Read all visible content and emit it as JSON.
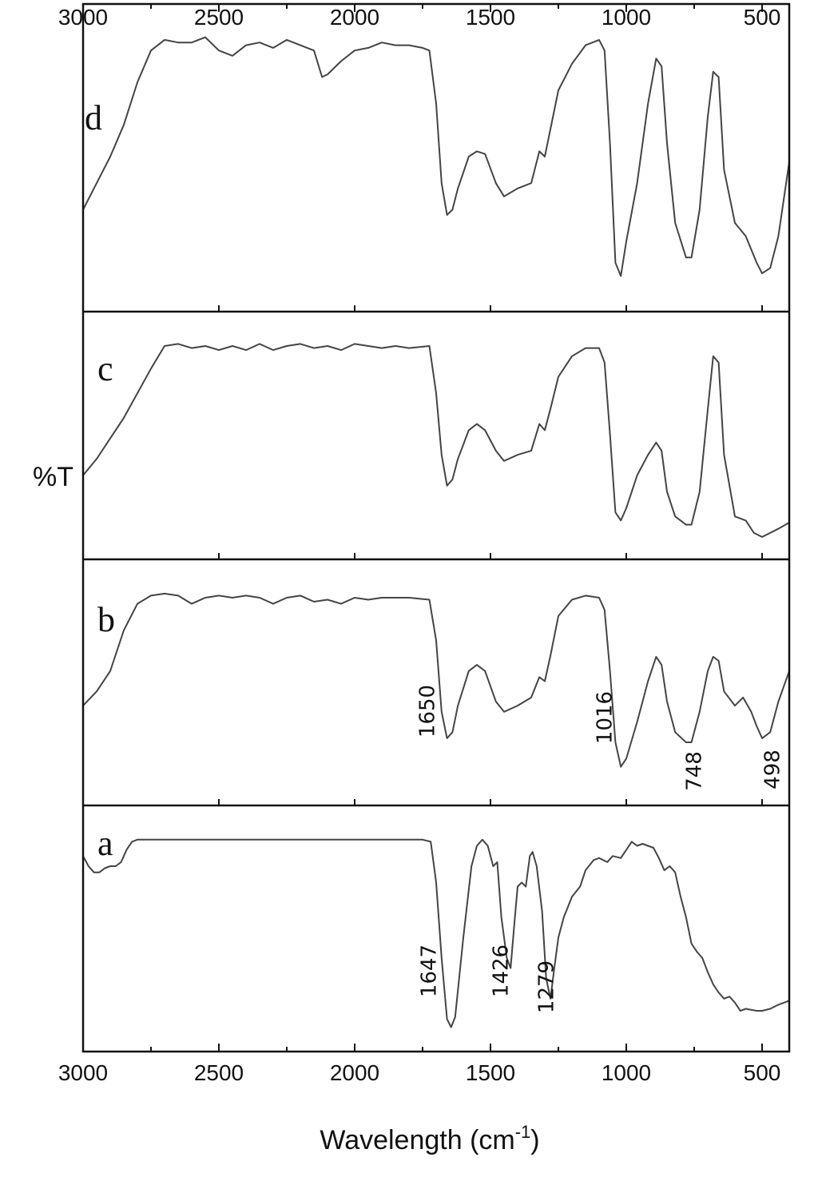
{
  "chart_data": {
    "type": "line",
    "xlabel": "Wavelength (cm",
    "xlabel_superscript": "-1",
    "xlabel_suffix": ")",
    "ylabel": "%T",
    "xlim": [
      3000,
      400
    ],
    "x_ticks": [
      3000,
      2500,
      2000,
      1500,
      1000,
      500
    ],
    "panels": [
      {
        "label": "d",
        "peak_labels": [],
        "points": [
          [
            3000,
            0.3
          ],
          [
            2950,
            0.4
          ],
          [
            2900,
            0.5
          ],
          [
            2850,
            0.62
          ],
          [
            2800,
            0.78
          ],
          [
            2750,
            0.9
          ],
          [
            2700,
            0.94
          ],
          [
            2650,
            0.93
          ],
          [
            2600,
            0.93
          ],
          [
            2550,
            0.95
          ],
          [
            2500,
            0.9
          ],
          [
            2450,
            0.88
          ],
          [
            2400,
            0.92
          ],
          [
            2350,
            0.93
          ],
          [
            2300,
            0.91
          ],
          [
            2250,
            0.94
          ],
          [
            2200,
            0.92
          ],
          [
            2150,
            0.9
          ],
          [
            2120,
            0.8
          ],
          [
            2100,
            0.81
          ],
          [
            2050,
            0.86
          ],
          [
            2000,
            0.9
          ],
          [
            1950,
            0.91
          ],
          [
            1900,
            0.93
          ],
          [
            1850,
            0.92
          ],
          [
            1800,
            0.92
          ],
          [
            1750,
            0.91
          ],
          [
            1725,
            0.9
          ],
          [
            1700,
            0.7
          ],
          [
            1680,
            0.4
          ],
          [
            1660,
            0.28
          ],
          [
            1640,
            0.3
          ],
          [
            1620,
            0.38
          ],
          [
            1580,
            0.5
          ],
          [
            1550,
            0.52
          ],
          [
            1520,
            0.51
          ],
          [
            1480,
            0.4
          ],
          [
            1450,
            0.35
          ],
          [
            1400,
            0.38
          ],
          [
            1350,
            0.4
          ],
          [
            1320,
            0.52
          ],
          [
            1300,
            0.5
          ],
          [
            1280,
            0.6
          ],
          [
            1250,
            0.75
          ],
          [
            1200,
            0.85
          ],
          [
            1150,
            0.92
          ],
          [
            1100,
            0.94
          ],
          [
            1080,
            0.9
          ],
          [
            1060,
            0.55
          ],
          [
            1040,
            0.1
          ],
          [
            1020,
            0.05
          ],
          [
            1000,
            0.18
          ],
          [
            960,
            0.4
          ],
          [
            920,
            0.7
          ],
          [
            890,
            0.87
          ],
          [
            870,
            0.84
          ],
          [
            850,
            0.55
          ],
          [
            820,
            0.25
          ],
          [
            780,
            0.12
          ],
          [
            760,
            0.12
          ],
          [
            730,
            0.3
          ],
          [
            700,
            0.65
          ],
          [
            680,
            0.82
          ],
          [
            660,
            0.8
          ],
          [
            640,
            0.45
          ],
          [
            600,
            0.25
          ],
          [
            560,
            0.2
          ],
          [
            520,
            0.1
          ],
          [
            500,
            0.06
          ],
          [
            470,
            0.08
          ],
          [
            440,
            0.2
          ],
          [
            400,
            0.48
          ]
        ]
      },
      {
        "label": "c",
        "peak_labels": [],
        "points": [
          [
            3000,
            0.3
          ],
          [
            2950,
            0.38
          ],
          [
            2900,
            0.48
          ],
          [
            2850,
            0.58
          ],
          [
            2800,
            0.7
          ],
          [
            2750,
            0.82
          ],
          [
            2700,
            0.93
          ],
          [
            2650,
            0.94
          ],
          [
            2600,
            0.92
          ],
          [
            2550,
            0.93
          ],
          [
            2500,
            0.91
          ],
          [
            2450,
            0.93
          ],
          [
            2400,
            0.91
          ],
          [
            2350,
            0.94
          ],
          [
            2300,
            0.91
          ],
          [
            2250,
            0.93
          ],
          [
            2200,
            0.94
          ],
          [
            2150,
            0.92
          ],
          [
            2100,
            0.93
          ],
          [
            2050,
            0.91
          ],
          [
            2000,
            0.94
          ],
          [
            1950,
            0.93
          ],
          [
            1900,
            0.92
          ],
          [
            1850,
            0.93
          ],
          [
            1800,
            0.92
          ],
          [
            1725,
            0.93
          ],
          [
            1700,
            0.7
          ],
          [
            1680,
            0.4
          ],
          [
            1660,
            0.25
          ],
          [
            1640,
            0.28
          ],
          [
            1620,
            0.38
          ],
          [
            1580,
            0.52
          ],
          [
            1550,
            0.55
          ],
          [
            1520,
            0.52
          ],
          [
            1480,
            0.42
          ],
          [
            1450,
            0.37
          ],
          [
            1400,
            0.4
          ],
          [
            1350,
            0.42
          ],
          [
            1320,
            0.55
          ],
          [
            1300,
            0.52
          ],
          [
            1280,
            0.62
          ],
          [
            1250,
            0.78
          ],
          [
            1200,
            0.88
          ],
          [
            1150,
            0.92
          ],
          [
            1100,
            0.92
          ],
          [
            1080,
            0.85
          ],
          [
            1060,
            0.5
          ],
          [
            1040,
            0.12
          ],
          [
            1020,
            0.08
          ],
          [
            1000,
            0.14
          ],
          [
            960,
            0.3
          ],
          [
            920,
            0.4
          ],
          [
            890,
            0.46
          ],
          [
            870,
            0.42
          ],
          [
            850,
            0.22
          ],
          [
            820,
            0.1
          ],
          [
            780,
            0.06
          ],
          [
            760,
            0.06
          ],
          [
            730,
            0.22
          ],
          [
            700,
            0.62
          ],
          [
            680,
            0.88
          ],
          [
            660,
            0.85
          ],
          [
            640,
            0.4
          ],
          [
            600,
            0.1
          ],
          [
            560,
            0.08
          ],
          [
            530,
            0.02
          ],
          [
            500,
            0.0
          ],
          [
            470,
            0.02
          ],
          [
            440,
            0.04
          ],
          [
            400,
            0.07
          ]
        ]
      },
      {
        "label": "b",
        "peak_labels": [
          "1650",
          "1016",
          "748",
          "498"
        ],
        "points": [
          [
            3000,
            0.38
          ],
          [
            2950,
            0.45
          ],
          [
            2900,
            0.55
          ],
          [
            2850,
            0.75
          ],
          [
            2800,
            0.88
          ],
          [
            2750,
            0.92
          ],
          [
            2700,
            0.93
          ],
          [
            2650,
            0.92
          ],
          [
            2600,
            0.88
          ],
          [
            2550,
            0.91
          ],
          [
            2500,
            0.92
          ],
          [
            2450,
            0.91
          ],
          [
            2400,
            0.92
          ],
          [
            2350,
            0.91
          ],
          [
            2300,
            0.88
          ],
          [
            2250,
            0.91
          ],
          [
            2200,
            0.92
          ],
          [
            2150,
            0.89
          ],
          [
            2100,
            0.9
          ],
          [
            2050,
            0.88
          ],
          [
            2000,
            0.91
          ],
          [
            1950,
            0.9
          ],
          [
            1900,
            0.91
          ],
          [
            1850,
            0.91
          ],
          [
            1800,
            0.91
          ],
          [
            1725,
            0.9
          ],
          [
            1700,
            0.7
          ],
          [
            1680,
            0.35
          ],
          [
            1660,
            0.22
          ],
          [
            1640,
            0.25
          ],
          [
            1620,
            0.38
          ],
          [
            1580,
            0.55
          ],
          [
            1550,
            0.58
          ],
          [
            1520,
            0.55
          ],
          [
            1480,
            0.4
          ],
          [
            1450,
            0.35
          ],
          [
            1400,
            0.38
          ],
          [
            1350,
            0.42
          ],
          [
            1320,
            0.52
          ],
          [
            1300,
            0.5
          ],
          [
            1280,
            0.62
          ],
          [
            1250,
            0.82
          ],
          [
            1200,
            0.9
          ],
          [
            1150,
            0.92
          ],
          [
            1100,
            0.91
          ],
          [
            1080,
            0.85
          ],
          [
            1060,
            0.55
          ],
          [
            1040,
            0.2
          ],
          [
            1020,
            0.08
          ],
          [
            1000,
            0.12
          ],
          [
            960,
            0.3
          ],
          [
            920,
            0.5
          ],
          [
            890,
            0.62
          ],
          [
            870,
            0.58
          ],
          [
            850,
            0.4
          ],
          [
            820,
            0.25
          ],
          [
            780,
            0.2
          ],
          [
            760,
            0.2
          ],
          [
            730,
            0.35
          ],
          [
            700,
            0.55
          ],
          [
            680,
            0.62
          ],
          [
            660,
            0.6
          ],
          [
            640,
            0.45
          ],
          [
            600,
            0.38
          ],
          [
            570,
            0.42
          ],
          [
            540,
            0.35
          ],
          [
            520,
            0.28
          ],
          [
            500,
            0.22
          ],
          [
            470,
            0.25
          ],
          [
            440,
            0.4
          ],
          [
            400,
            0.55
          ]
        ]
      },
      {
        "label": "a",
        "peak_labels": [
          "1647",
          "1426",
          "1279"
        ],
        "points": [
          [
            3000,
            0.85
          ],
          [
            2980,
            0.8
          ],
          [
            2960,
            0.77
          ],
          [
            2940,
            0.77
          ],
          [
            2920,
            0.79
          ],
          [
            2900,
            0.8
          ],
          [
            2880,
            0.8
          ],
          [
            2860,
            0.82
          ],
          [
            2840,
            0.88
          ],
          [
            2820,
            0.92
          ],
          [
            2800,
            0.93
          ],
          [
            2750,
            0.93
          ],
          [
            2700,
            0.93
          ],
          [
            2500,
            0.93
          ],
          [
            2000,
            0.93
          ],
          [
            1800,
            0.93
          ],
          [
            1750,
            0.93
          ],
          [
            1720,
            0.92
          ],
          [
            1700,
            0.72
          ],
          [
            1680,
            0.35
          ],
          [
            1660,
            0.05
          ],
          [
            1645,
            0.01
          ],
          [
            1630,
            0.06
          ],
          [
            1600,
            0.45
          ],
          [
            1570,
            0.8
          ],
          [
            1550,
            0.9
          ],
          [
            1530,
            0.93
          ],
          [
            1510,
            0.9
          ],
          [
            1490,
            0.8
          ],
          [
            1475,
            0.82
          ],
          [
            1460,
            0.55
          ],
          [
            1440,
            0.35
          ],
          [
            1426,
            0.3
          ],
          [
            1410,
            0.55
          ],
          [
            1400,
            0.7
          ],
          [
            1385,
            0.72
          ],
          [
            1370,
            0.7
          ],
          [
            1355,
            0.85
          ],
          [
            1345,
            0.87
          ],
          [
            1330,
            0.8
          ],
          [
            1310,
            0.58
          ],
          [
            1295,
            0.25
          ],
          [
            1279,
            0.15
          ],
          [
            1265,
            0.3
          ],
          [
            1250,
            0.45
          ],
          [
            1230,
            0.55
          ],
          [
            1200,
            0.65
          ],
          [
            1170,
            0.7
          ],
          [
            1150,
            0.78
          ],
          [
            1120,
            0.83
          ],
          [
            1100,
            0.84
          ],
          [
            1070,
            0.82
          ],
          [
            1050,
            0.85
          ],
          [
            1020,
            0.84
          ],
          [
            1000,
            0.88
          ],
          [
            980,
            0.92
          ],
          [
            960,
            0.9
          ],
          [
            940,
            0.91
          ],
          [
            920,
            0.9
          ],
          [
            900,
            0.89
          ],
          [
            880,
            0.84
          ],
          [
            860,
            0.78
          ],
          [
            840,
            0.8
          ],
          [
            820,
            0.77
          ],
          [
            800,
            0.65
          ],
          [
            780,
            0.55
          ],
          [
            760,
            0.42
          ],
          [
            740,
            0.38
          ],
          [
            720,
            0.35
          ],
          [
            700,
            0.28
          ],
          [
            680,
            0.22
          ],
          [
            660,
            0.18
          ],
          [
            640,
            0.15
          ],
          [
            620,
            0.16
          ],
          [
            600,
            0.13
          ],
          [
            580,
            0.09
          ],
          [
            560,
            0.1
          ],
          [
            520,
            0.09
          ],
          [
            500,
            0.09
          ],
          [
            470,
            0.1
          ],
          [
            440,
            0.12
          ],
          [
            400,
            0.14
          ]
        ]
      }
    ]
  }
}
